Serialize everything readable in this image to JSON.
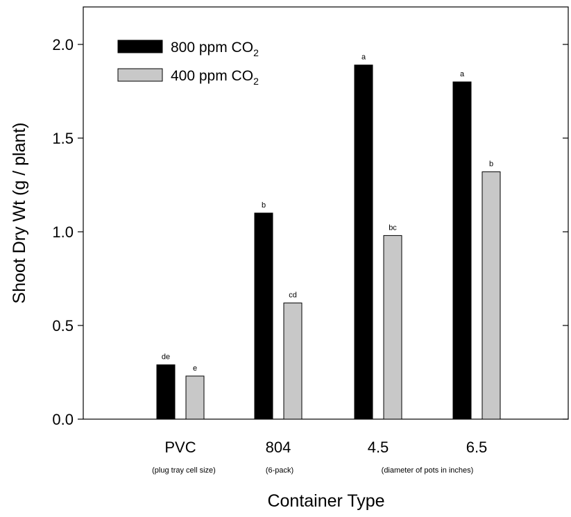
{
  "chart_data": {
    "type": "bar",
    "title": "",
    "xlabel": "Container Type",
    "ylabel": "Shoot Dry Wt (g / plant)",
    "ylim": [
      0,
      2.2
    ],
    "yticks": [
      "0.0",
      "0.5",
      "1.0",
      "1.5",
      "2.0"
    ],
    "categories": [
      "PVC",
      "804",
      "4.5",
      "6.5"
    ],
    "category_notes": [
      {
        "text": "(plug tray cell size)",
        "category": "PVC"
      },
      {
        "text": "(6-pack)",
        "category": "804"
      },
      {
        "text": "(diameter of pots in inches)",
        "category": "4.5 / 6.5"
      }
    ],
    "legend": {
      "placement": "top-left"
    },
    "series": [
      {
        "name": "800 ppm CO2",
        "name_main": "800 ppm CO",
        "name_sub": "2",
        "color": "#000000",
        "values": [
          0.29,
          1.1,
          1.89,
          1.8
        ],
        "letters": [
          "de",
          "b",
          "a",
          "a"
        ]
      },
      {
        "name": "400 ppm CO2",
        "name_main": "400 ppm CO",
        "name_sub": "2",
        "color": "#c8c8c8",
        "values": [
          0.23,
          0.62,
          0.98,
          1.32
        ],
        "letters": [
          "e",
          "cd",
          "bc",
          "b"
        ]
      }
    ],
    "grid": false
  }
}
